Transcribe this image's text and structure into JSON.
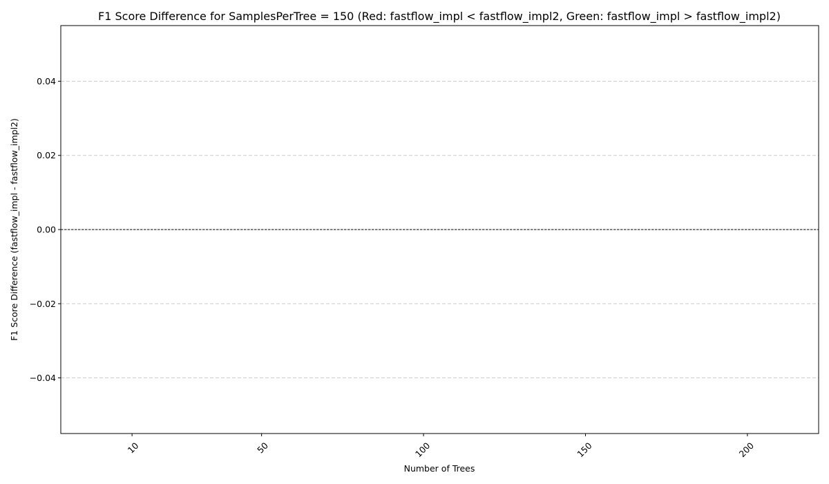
{
  "chart_data": {
    "type": "bar",
    "title": "F1 Score Difference for SamplesPerTree = 150 (Red: fastflow_impl < fastflow_impl2, Green: fastflow_impl > fastflow_impl2)",
    "xlabel": "Number of Trees",
    "ylabel": "F1 Score Difference (fastflow_impl - fastflow_impl2)",
    "categories": [
      "10",
      "50",
      "100",
      "150",
      "200"
    ],
    "values": [
      0,
      0,
      0,
      0,
      0
    ],
    "ylim": [
      -0.055,
      0.055
    ],
    "yticks": [
      -0.04,
      -0.02,
      0.0,
      0.02,
      0.04
    ],
    "ytick_labels": [
      "−0.04",
      "−0.02",
      "0.00",
      "0.02",
      "0.04"
    ],
    "grid": "horizontal dashed",
    "zero_line": true,
    "colors": {
      "negative": "#d62728",
      "positive": "#2ca02c",
      "grid": "#cccccc",
      "zero_line": "#000000"
    }
  }
}
